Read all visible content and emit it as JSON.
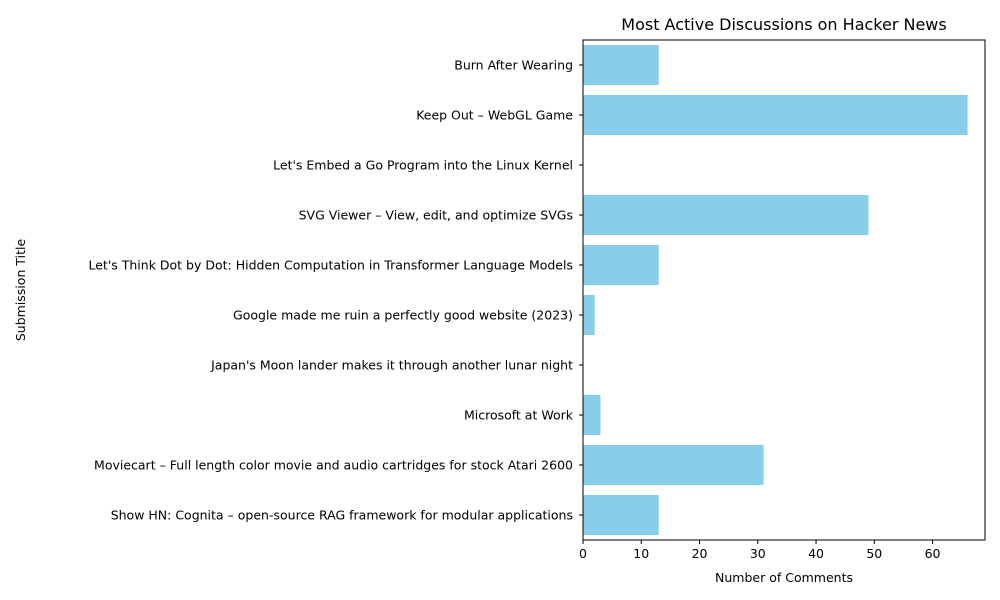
{
  "chart_data": {
    "type": "bar",
    "orientation": "horizontal",
    "title": "Most Active Discussions on Hacker News",
    "xlabel": "Number of Comments",
    "ylabel": "Submission Title",
    "xlim": [
      0,
      69
    ],
    "xticks": [
      0,
      10,
      20,
      30,
      40,
      50,
      60
    ],
    "grid": false,
    "bar_color": "#87ceeb",
    "categories": [
      "Show HN: Cognita – open-source RAG framework for modular applications",
      "Moviecart – Full length color movie and audio cartridges for stock Atari 2600",
      "Microsoft at Work",
      "Japan's Moon lander makes it through another lunar night",
      "Google made me ruin a perfectly good website (2023)",
      "Let's Think Dot by Dot: Hidden Computation in Transformer Language Models",
      "SVG Viewer – View, edit, and optimize SVGs",
      "Let's Embed a Go Program into the Linux Kernel",
      "Keep Out – WebGL Game",
      "Burn After Wearing"
    ],
    "values": [
      13,
      31,
      3,
      0,
      2,
      13,
      49,
      0,
      66,
      13
    ]
  }
}
